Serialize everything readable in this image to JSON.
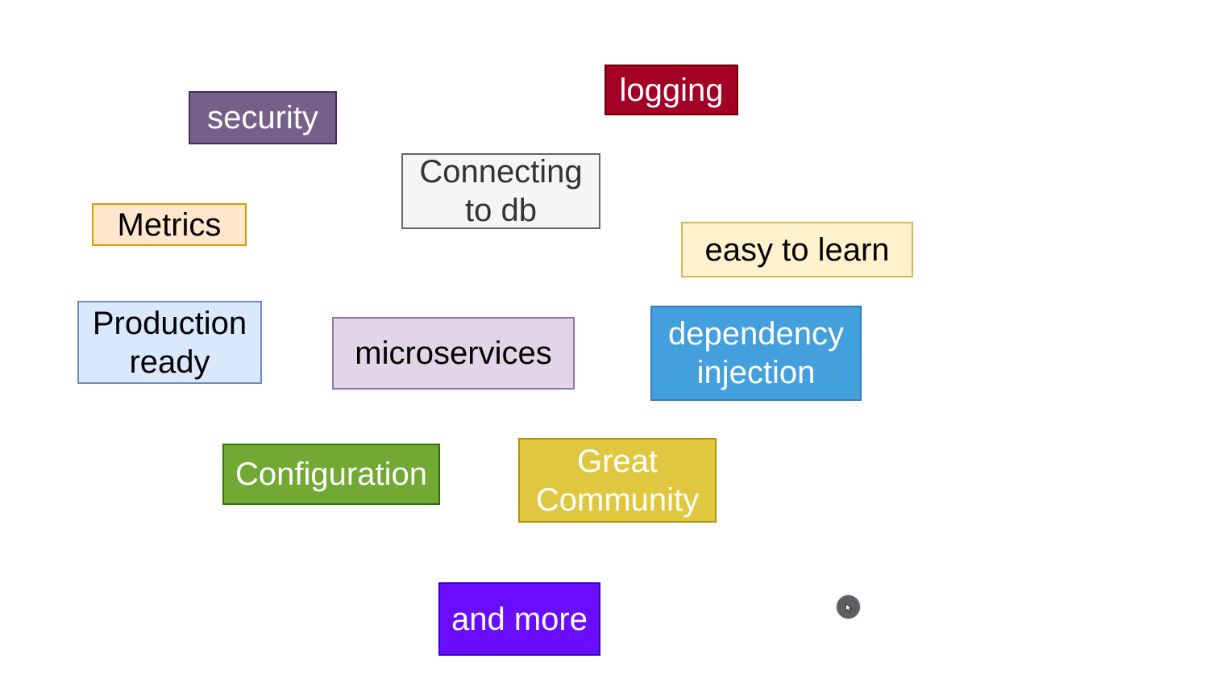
{
  "tags": [
    {
      "id": "security",
      "label": "security",
      "bg": "#76608a",
      "border": "#432d57",
      "text": "#ffffff"
    },
    {
      "id": "logging",
      "label": "logging",
      "bg": "#a20025",
      "border": "#6f0000",
      "text": "#ffffff"
    },
    {
      "id": "connecting",
      "label_lines": [
        "Connecting",
        "to db"
      ],
      "bg": "#f5f5f5",
      "border": "#666666",
      "text": "#333333"
    },
    {
      "id": "metrics",
      "label": "Metrics",
      "bg": "#ffe6cc",
      "border": "#d79b00",
      "text": "#000000"
    },
    {
      "id": "easy",
      "label": "easy to learn",
      "bg": "#fff2cc",
      "border": "#d6b656",
      "text": "#000000"
    },
    {
      "id": "production",
      "label_lines": [
        "Production",
        "ready"
      ],
      "bg": "#dae8fc",
      "border": "#6c8ebf",
      "text": "#000000"
    },
    {
      "id": "microservices",
      "label": "microservices",
      "bg": "#e1d5e7",
      "border": "#9673a6",
      "text": "#000000"
    },
    {
      "id": "dependency",
      "label_lines": [
        "dependency",
        "injection"
      ],
      "bg": "#449fdd",
      "border": "#2f7bbf",
      "text": "#ffffff"
    },
    {
      "id": "configuration",
      "label": "Configuration",
      "bg": "#72a834",
      "border": "#2d7600",
      "text": "#ffffff"
    },
    {
      "id": "community",
      "label_lines": [
        "Great",
        "Community"
      ],
      "bg": "#dfc83f",
      "border": "#b09500",
      "text": "#ffffff"
    },
    {
      "id": "more",
      "label": "and more",
      "bg": "#6a0dfe",
      "border": "#3700cc",
      "text": "#ffffff"
    }
  ],
  "cursor": {
    "icon": "pointer-cursor-icon"
  }
}
